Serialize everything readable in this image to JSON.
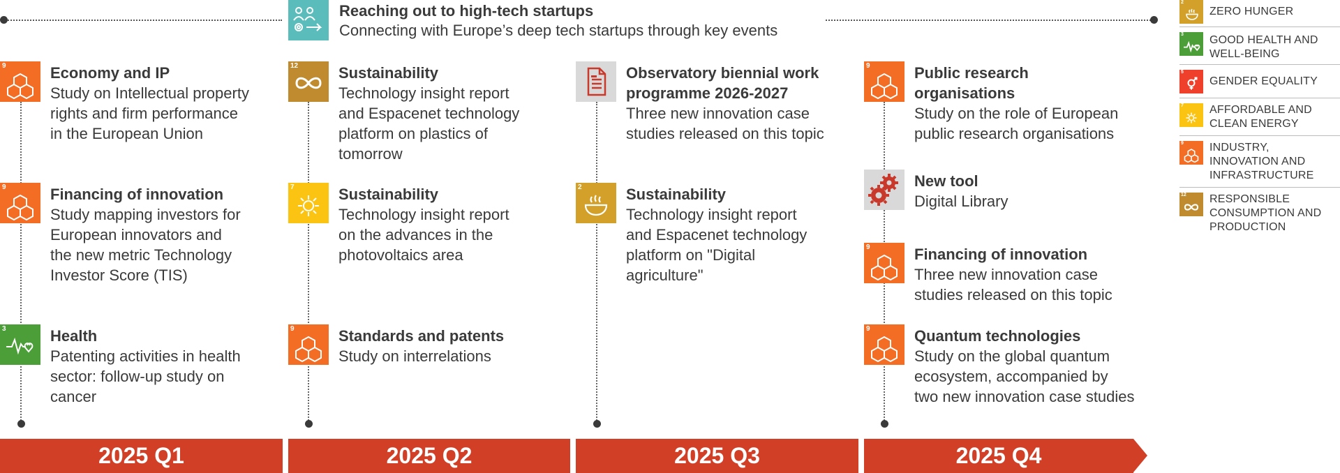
{
  "header_event": {
    "title": "Reaching out to high-tech startups",
    "subtitle": "Connecting with Europe’s deep tech startups through key events",
    "icon": "startup-network-icon",
    "color": "#5bbdbb"
  },
  "columns": [
    {
      "quarter": "2025 Q1",
      "items": [
        {
          "title": "Economy and IP",
          "desc": [
            "Study on Intellectual property",
            "rights and firm performance",
            "in the European Union"
          ],
          "sdg": 9,
          "sdg_label": "INDUSTRY, INNOVATION AND INFRASTRUCTURE"
        },
        {
          "title": "Financing of innovation",
          "desc": [
            "Study mapping investors for",
            "European innovators and",
            "the new metric Technology",
            "Investor Score (TIS)"
          ],
          "sdg": 9,
          "sdg_label": "INDUSTRY, INNOVATION AND INFRASTRUCTURE"
        },
        {
          "title": "Health",
          "desc": [
            "Patenting activities in health",
            "sector: follow-up study on",
            "cancer"
          ],
          "sdg": 3,
          "sdg_label": "GOOD HEALTH AND WELL-BEING"
        }
      ]
    },
    {
      "quarter": "2025 Q2",
      "items": [
        {
          "title": "Sustainability",
          "desc": [
            "Technology insight report",
            "and Espacenet technology",
            "platform on plastics of",
            "tomorrow"
          ],
          "sdg": 12,
          "sdg_label": "RESPONSIBLE CONSUMPTION AND PRODUCTION"
        },
        {
          "title": "Sustainability",
          "desc": [
            "Technology insight report",
            "on the advances in the",
            "photovoltaics area"
          ],
          "sdg": 7,
          "sdg_label": "AFFORDABLE AND CLEAN ENERGY"
        },
        {
          "title": "Standards and patents",
          "desc": [
            "Study on interrelations"
          ],
          "sdg": 9,
          "sdg_label": "INDUSTRY, INNOVATION AND INFRASTRUCTURE"
        }
      ]
    },
    {
      "quarter": "2025 Q3",
      "items": [
        {
          "title": [
            "Observatory biennial work",
            "programme 2026-2027"
          ],
          "desc": [
            "Three new innovation case",
            "studies released on this topic"
          ],
          "icon": "document-icon"
        },
        {
          "title": "Sustainability",
          "desc": [
            "Technology insight report",
            "and Espacenet technology",
            "platform on \"Digital",
            "agriculture\""
          ],
          "sdg": 2,
          "sdg_label": "ZERO HUNGER"
        }
      ]
    },
    {
      "quarter": "2025 Q4",
      "items": [
        {
          "title": [
            "Public research",
            "organisations"
          ],
          "desc": [
            "Study on the role of European",
            "public research organisations"
          ],
          "sdg": 9,
          "sdg_label": "INDUSTRY, INNOVATION AND INFRASTRUCTURE"
        },
        {
          "title": "New tool",
          "desc": [
            "Digital Library"
          ],
          "icon": "gears-icon"
        },
        {
          "title": "Financing of innovation",
          "desc": [
            "Three new innovation case",
            "studies released on this topic"
          ],
          "sdg": 9,
          "sdg_label": "INDUSTRY, INNOVATION AND INFRASTRUCTURE"
        },
        {
          "title": "Quantum technologies",
          "desc": [
            "Study on the global quantum",
            "ecosystem, accompanied by",
            "two new innovation case studies"
          ],
          "sdg": 9,
          "sdg_label": "INDUSTRY, INNOVATION AND INFRASTRUCTURE"
        }
      ]
    }
  ],
  "legend": [
    {
      "sdg": 2,
      "label": [
        "ZERO HUNGER"
      ],
      "color": "#d3a029"
    },
    {
      "sdg": 3,
      "label": [
        "GOOD HEALTH AND",
        "WELL-BEING"
      ],
      "color": "#4c9f38"
    },
    {
      "sdg": 5,
      "label": [
        "GENDER EQUALITY"
      ],
      "color": "#ef402b"
    },
    {
      "sdg": 7,
      "label": [
        "AFFORDABLE AND",
        "CLEAN ENERGY"
      ],
      "color": "#fbc412"
    },
    {
      "sdg": 9,
      "label": [
        "INDUSTRY,",
        "INNOVATION AND",
        "INFRASTRUCTURE"
      ],
      "color": "#f36d25"
    },
    {
      "sdg": 12,
      "label": [
        "RESPONSIBLE",
        "CONSUMPTION AND",
        "PRODUCTION"
      ],
      "color": "#bf8b2e"
    }
  ],
  "colors": {
    "quarter_bar": "#d13f27",
    "sdg9": "#f36d25",
    "sdg3": "#4c9f38",
    "sdg12": "#bf8b2e",
    "sdg7": "#fbc412",
    "sdg2": "#d3a029"
  }
}
